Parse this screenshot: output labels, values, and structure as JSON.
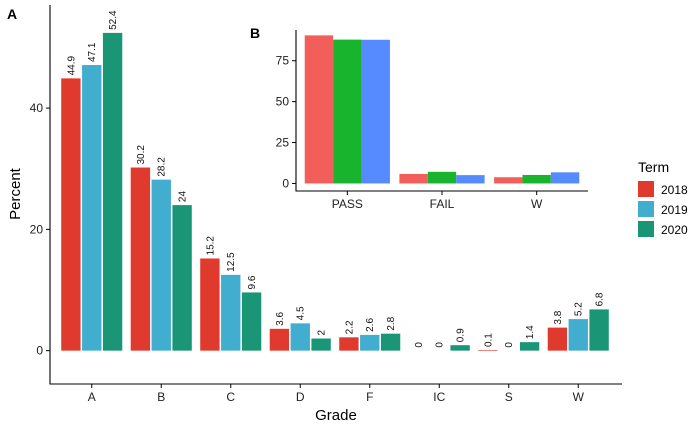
{
  "chart_data": [
    {
      "panel": "A",
      "type": "bar",
      "xlabel": "Grade",
      "ylabel": "Percent",
      "categories": [
        "A",
        "B",
        "C",
        "D",
        "F",
        "IC",
        "S",
        "W"
      ],
      "yticks": [
        0,
        20,
        40
      ],
      "ylim": [
        -5.5,
        57
      ],
      "series": [
        {
          "name": "2018",
          "values": [
            44.9,
            30.2,
            15.2,
            3.6,
            2.2,
            0,
            0.1,
            3.8
          ],
          "labels": [
            "44.9",
            "30.2",
            "15.2",
            "3.6",
            "2.2",
            "0",
            "0.1",
            "3.8"
          ]
        },
        {
          "name": "2019",
          "values": [
            47.1,
            28.2,
            12.5,
            4.5,
            2.6,
            0,
            0,
            5.2
          ],
          "labels": [
            "47.1",
            "28.2",
            "12.5",
            "4.5",
            "2.6",
            "0",
            "0",
            "5.2"
          ]
        },
        {
          "name": "2020",
          "values": [
            52.4,
            24,
            9.6,
            2,
            2.8,
            0.9,
            1.4,
            6.8
          ],
          "labels": [
            "52.4",
            "24",
            "9.6",
            "2",
            "2.8",
            "0.9",
            "1.4",
            "6.8"
          ]
        }
      ],
      "grid": false,
      "legend": "right"
    },
    {
      "panel": "B",
      "type": "bar",
      "xlabel": "",
      "ylabel": "",
      "categories": [
        "PASS",
        "FAIL",
        "W"
      ],
      "yticks": [
        0,
        25,
        50,
        75
      ],
      "ylim": [
        -4,
        95
      ],
      "series": [
        {
          "name": "2018",
          "values": [
            90.5,
            5.8,
            3.8
          ]
        },
        {
          "name": "2019",
          "values": [
            87.9,
            7.1,
            5.2
          ]
        },
        {
          "name": "2020",
          "values": [
            87.8,
            5.1,
            6.8
          ]
        }
      ],
      "grid": false
    }
  ],
  "legend": {
    "title": "Term",
    "position": "right",
    "items": [
      {
        "label": "2018",
        "color": "#E03A2E"
      },
      {
        "label": "2019",
        "color": "#41AECF"
      },
      {
        "label": "2020",
        "color": "#1A9576"
      }
    ]
  },
  "colors": {
    "panel_a": [
      "#E03A2E",
      "#41AECF",
      "#1A9576"
    ],
    "panel_b": [
      "#F25F5B",
      "#19B42E",
      "#558BFF"
    ]
  }
}
